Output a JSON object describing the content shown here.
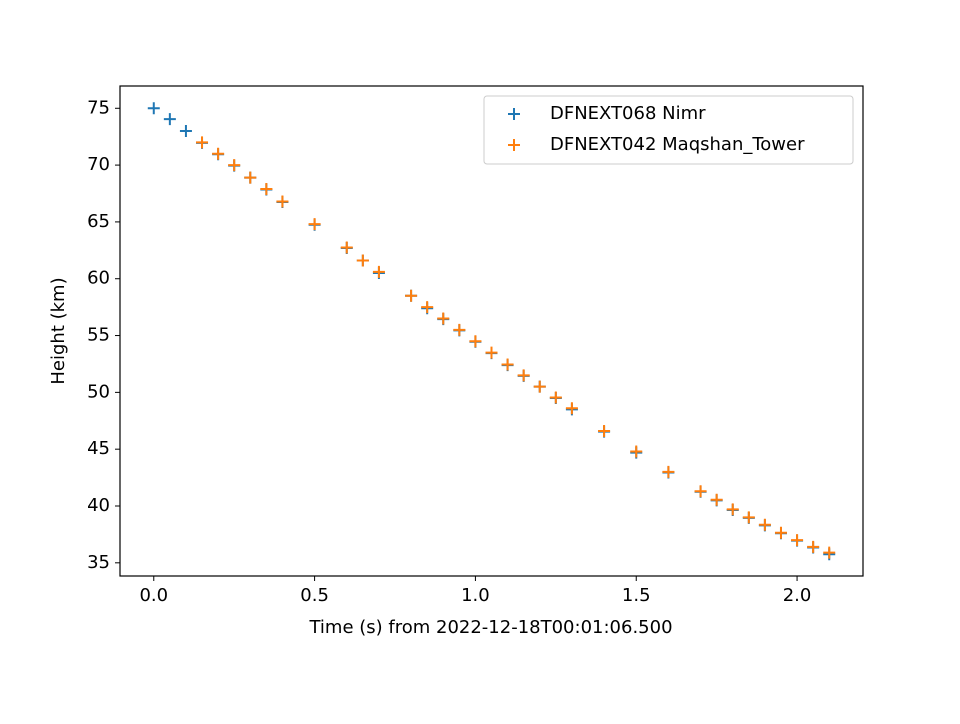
{
  "chart_data": {
    "type": "scatter",
    "xlabel": "Time (s) from 2022-12-18T00:01:06.500",
    "ylabel": "Height (km)",
    "xlim": [
      -0.105,
      2.205
    ],
    "xticks": [
      {
        "value": 0,
        "label": "0.0"
      },
      {
        "value": 0.5,
        "label": "0.5"
      },
      {
        "value": 1,
        "label": "1.0"
      },
      {
        "value": 1.5,
        "label": "1.5"
      },
      {
        "value": 2,
        "label": "2.0"
      }
    ],
    "ylim": [
      33.84,
      76.96
    ],
    "yticks": [
      35,
      40,
      45,
      50,
      55,
      60,
      65,
      70,
      75
    ],
    "legend": "upper right",
    "series": [
      {
        "name": "DFNEXT068 Nimr",
        "color": "#1f77b4",
        "x": [
          0,
          0.05,
          0.1,
          0.15,
          0.2,
          0.25,
          0.3,
          0.35,
          0.4,
          0.5,
          0.6,
          0.65,
          0.7,
          0.8,
          0.85,
          0.9,
          0.95,
          1.0,
          1.05,
          1.1,
          1.15,
          1.2,
          1.25,
          1.3,
          1.4,
          1.5,
          1.6,
          1.7,
          1.75,
          1.8,
          1.85,
          1.9,
          1.95,
          2.0,
          2.05,
          2.1
        ],
        "values": [
          75.0,
          74.05,
          73.0,
          71.95,
          70.95,
          69.95,
          68.9,
          67.85,
          66.75,
          64.75,
          62.7,
          61.6,
          60.5,
          58.5,
          57.4,
          56.45,
          55.45,
          54.45,
          53.45,
          52.4,
          51.45,
          50.5,
          49.5,
          48.5,
          46.55,
          44.7,
          42.95,
          41.25,
          40.5,
          39.65,
          38.95,
          38.3,
          37.6,
          36.95,
          36.35,
          35.75
        ]
      },
      {
        "name": "DFNEXT042 Maqshan_Tower",
        "color": "#ff7f0e",
        "x": [
          0.15,
          0.2,
          0.25,
          0.3,
          0.35,
          0.4,
          0.5,
          0.6,
          0.65,
          0.7,
          0.8,
          0.85,
          0.9,
          0.95,
          1.0,
          1.05,
          1.1,
          1.15,
          1.2,
          1.25,
          1.3,
          1.4,
          1.5,
          1.6,
          1.7,
          1.75,
          1.8,
          1.85,
          1.9,
          1.95,
          2.0,
          2.05,
          2.1
        ],
        "values": [
          72.0,
          71.0,
          70.0,
          68.9,
          67.9,
          66.8,
          64.8,
          62.75,
          61.6,
          60.6,
          58.5,
          57.5,
          56.5,
          55.5,
          54.5,
          53.5,
          52.45,
          51.5,
          50.5,
          49.55,
          48.6,
          46.6,
          44.8,
          43.0,
          41.3,
          40.55,
          39.7,
          39.0,
          38.35,
          37.65,
          37.0,
          36.4,
          35.9
        ]
      }
    ]
  }
}
